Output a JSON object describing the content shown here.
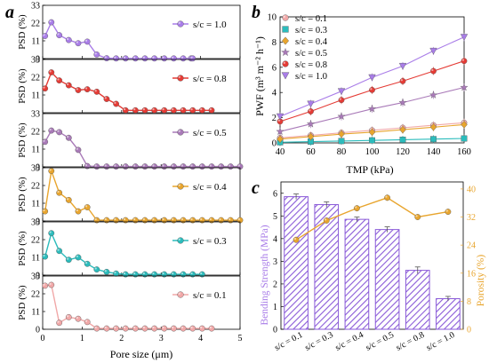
{
  "chart_data": [
    {
      "panel": "a",
      "type": "line",
      "xlabel": "Pore size (μm)",
      "ylabel": "PSD (%)",
      "xlim": [
        0,
        5
      ],
      "xticks": [
        "0",
        "1",
        "2",
        "3",
        "4",
        "5"
      ],
      "subplots": [
        {
          "name": "s/c = 1.0",
          "color": "#a97de8",
          "ylim": [
            0,
            33
          ],
          "yticks": [
            "0",
            "11",
            "22",
            "33"
          ],
          "x": [
            0.06,
            0.22,
            0.42,
            0.66,
            0.9,
            1.13,
            1.37,
            1.62,
            1.86,
            2.1,
            2.35,
            2.59,
            2.83,
            3.08,
            3.32,
            3.56,
            3.76,
            3.8
          ],
          "y": [
            14.0,
            22.5,
            14.5,
            11.5,
            9.5,
            10.5,
            2.5,
            0.2,
            0.1,
            0.1,
            0.1,
            0.1,
            0.1,
            0.1,
            0.1,
            0.1,
            0.1,
            0.1
          ]
        },
        {
          "name": "s/c = 0.8",
          "color": "#e53b35",
          "ylim": [
            0,
            33
          ],
          "yticks": [
            "11",
            "22",
            "33"
          ],
          "x": [
            0.06,
            0.22,
            0.42,
            0.66,
            0.9,
            1.13,
            1.37,
            1.62,
            1.86,
            2.1,
            2.35,
            2.59,
            2.83,
            3.08,
            3.32,
            3.56,
            3.8,
            4.04,
            4.28
          ],
          "y": [
            15.0,
            25.0,
            20.0,
            17.0,
            14.0,
            14.5,
            13.0,
            8.5,
            5.5,
            1.5,
            1.5,
            1.5,
            1.5,
            1.5,
            1.5,
            1.5,
            1.5,
            1.5,
            1.5
          ]
        },
        {
          "name": "s/c = 0.5",
          "color": "#a97ab8",
          "ylim": [
            0,
            33
          ],
          "yticks": [
            "0",
            "11",
            "22",
            "33"
          ],
          "x": [
            0.06,
            0.22,
            0.42,
            0.66,
            0.9,
            1.13,
            1.37,
            1.62,
            1.86,
            2.1,
            2.35,
            2.59,
            2.83,
            3.08,
            3.32,
            3.56,
            3.8,
            4.04,
            4.28,
            4.52,
            4.76,
            5.0
          ],
          "y": [
            15.5,
            22.5,
            21.5,
            18.0,
            10.5,
            0.5,
            0.2,
            0.2,
            0.2,
            0.2,
            0.2,
            0.2,
            0.2,
            0.2,
            0.2,
            0.2,
            0.2,
            0.2,
            0.2,
            0.2,
            0.2,
            0.2
          ]
        },
        {
          "name": "s/c = 0.4",
          "color": "#e8a52e",
          "ylim": [
            0,
            33
          ],
          "yticks": [
            "0",
            "11",
            "22",
            "33"
          ],
          "x": [
            0.06,
            0.22,
            0.42,
            0.66,
            0.9,
            1.13,
            1.37,
            1.62,
            1.86,
            2.1,
            2.35,
            2.59,
            2.83,
            3.08,
            3.32,
            3.56,
            3.8,
            4.04,
            4.28,
            4.52,
            4.76,
            5.0
          ],
          "y": [
            6.0,
            31.0,
            17.5,
            13.0,
            6.0,
            8.5,
            0.5,
            0.5,
            0.5,
            0.5,
            0.5,
            0.5,
            0.5,
            0.5,
            0.5,
            0.5,
            0.5,
            0.5,
            0.5,
            0.5,
            0.5,
            0.5
          ]
        },
        {
          "name": "s/c = 0.3",
          "color": "#2bbcbc",
          "ylim": [
            0,
            33
          ],
          "yticks": [
            "0",
            "11",
            "22",
            "33"
          ],
          "x": [
            0.06,
            0.22,
            0.42,
            0.66,
            0.9,
            1.13,
            1.37,
            1.62,
            1.86,
            2.1,
            2.35,
            2.59,
            2.83,
            3.08,
            3.32,
            3.56,
            3.8,
            4.04
          ],
          "y": [
            11.5,
            26.0,
            15.0,
            9.5,
            11.0,
            7.0,
            3.5,
            2.0,
            1.0,
            0.5,
            0.5,
            0.5,
            0.5,
            0.5,
            0.5,
            0.5,
            0.5,
            0.5
          ]
        },
        {
          "name": "s/c = 0.1",
          "color": "#f1a8a8",
          "ylim": [
            0,
            33
          ],
          "yticks": [
            "0",
            "11",
            "22",
            "33"
          ],
          "x": [
            0.06,
            0.22,
            0.42,
            0.66,
            0.9,
            1.13,
            1.37,
            1.62,
            1.86,
            2.1,
            2.35,
            2.59,
            2.83,
            3.08,
            3.32,
            3.56,
            3.8,
            4.04,
            4.28
          ],
          "y": [
            27.0,
            27.5,
            4.0,
            7.5,
            6.5,
            4.5,
            0.5,
            0.5,
            0.5,
            0.5,
            0.5,
            0.5,
            0.5,
            0.5,
            0.5,
            0.5,
            0.5,
            0.5,
            0.5
          ]
        }
      ]
    },
    {
      "panel": "b",
      "type": "scatter",
      "xlabel": "TMP (kPa)",
      "ylabel": "PWF (m³ m⁻² h⁻¹)",
      "xlim": [
        40,
        160
      ],
      "ylim": [
        0,
        10
      ],
      "xticks": [
        "40",
        "60",
        "80",
        "100",
        "120",
        "140",
        "160"
      ],
      "yticks": [
        "0",
        "2",
        "4",
        "6",
        "8",
        "10"
      ],
      "legend_position": "top-left",
      "x": [
        40,
        60,
        80,
        100,
        120,
        140,
        160
      ],
      "series": [
        {
          "name": "s/c = 0.1",
          "marker": "circle",
          "color": "#f1a8a8",
          "values": [
            0.4,
            0.6,
            0.8,
            1.0,
            1.2,
            1.4,
            1.6
          ]
        },
        {
          "name": "s/c = 0.3",
          "marker": "square",
          "color": "#2bbcbc",
          "values": [
            0.05,
            0.1,
            0.15,
            0.2,
            0.25,
            0.3,
            0.35
          ]
        },
        {
          "name": "s/c = 0.4",
          "marker": "diamond",
          "color": "#e8a52e",
          "values": [
            0.3,
            0.5,
            0.7,
            0.85,
            1.05,
            1.25,
            1.45
          ]
        },
        {
          "name": "s/c = 0.5",
          "marker": "star",
          "color": "#a97ab8",
          "values": [
            0.9,
            1.5,
            2.1,
            2.7,
            3.2,
            3.8,
            4.4
          ]
        },
        {
          "name": "s/c = 0.8",
          "marker": "circle",
          "color": "#e53b35",
          "values": [
            1.7,
            2.5,
            3.4,
            4.2,
            4.9,
            5.7,
            6.5
          ]
        },
        {
          "name": "s/c = 1.0",
          "marker": "triangle-down",
          "color": "#a97de8",
          "values": [
            2.1,
            3.1,
            4.1,
            5.2,
            6.1,
            7.3,
            8.4
          ]
        }
      ]
    },
    {
      "panel": "c",
      "type": "bar",
      "categories": [
        "s/c = 0.1",
        "s/c = 0.3",
        "s/c = 0.4",
        "s/c = 0.5",
        "s/c = 0.8",
        "s/c = 1.0"
      ],
      "ylabel": "Bending Strength (MPa)",
      "ylabel_color": "#a97de8",
      "ylim": [
        0,
        6.5
      ],
      "yticks": [
        "0",
        "1",
        "2",
        "3",
        "4",
        "5",
        "6"
      ],
      "values": [
        5.85,
        5.5,
        4.85,
        4.4,
        2.6,
        1.35
      ],
      "errors": [
        0.12,
        0.12,
        0.1,
        0.12,
        0.15,
        0.1
      ],
      "bar_color": "#8a5ad8",
      "y2label": "Porosity (%)",
      "y2label_color": "#e8a52e",
      "y2lim": [
        0,
        42
      ],
      "y2ticks": [
        "0",
        "8",
        "16",
        "24",
        "32",
        "40"
      ],
      "line_color": "#e8a52e",
      "line_values": [
        25.5,
        31.0,
        34.5,
        37.5,
        32.0,
        33.5
      ]
    }
  ],
  "panel_letters": {
    "a": "a",
    "b": "b",
    "c": "c"
  }
}
